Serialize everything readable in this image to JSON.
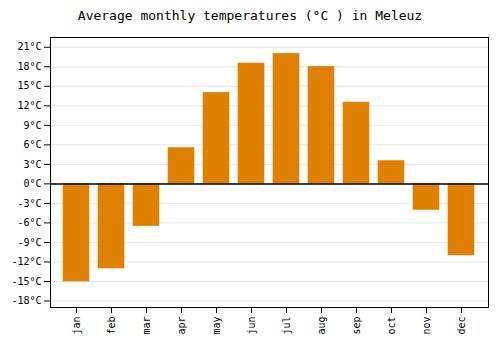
{
  "chart_data": {
    "type": "bar",
    "title": "Average monthly temperatures (°C ) in Meleuz",
    "categories": [
      "jan",
      "feb",
      "mar",
      "apr",
      "may",
      "jun",
      "jul",
      "aug",
      "sep",
      "oct",
      "nov",
      "dec"
    ],
    "values": [
      -15,
      -13,
      -6.5,
      5.5,
      14,
      18.5,
      20,
      18,
      12.5,
      3.5,
      -4,
      -11
    ],
    "color": "#E08000",
    "ylim": [
      -19,
      22.5
    ],
    "yticks": [
      {
        "value": -18,
        "label": "-18°C"
      },
      {
        "value": -15,
        "label": "-15°C"
      },
      {
        "value": -12,
        "label": "-12°C"
      },
      {
        "value": -9,
        "label": "-9°C"
      },
      {
        "value": -6,
        "label": "-6°C"
      },
      {
        "value": -3,
        "label": "-3°C"
      },
      {
        "value": 0,
        "label": "0°C"
      },
      {
        "value": 3,
        "label": "3°C"
      },
      {
        "value": 6,
        "label": "6°C"
      },
      {
        "value": 9,
        "label": "9°C"
      },
      {
        "value": 12,
        "label": "12°C"
      },
      {
        "value": 15,
        "label": "15°C"
      },
      {
        "value": 18,
        "label": "18°C"
      },
      {
        "value": 21,
        "label": "21°C"
      }
    ],
    "grid": true
  }
}
